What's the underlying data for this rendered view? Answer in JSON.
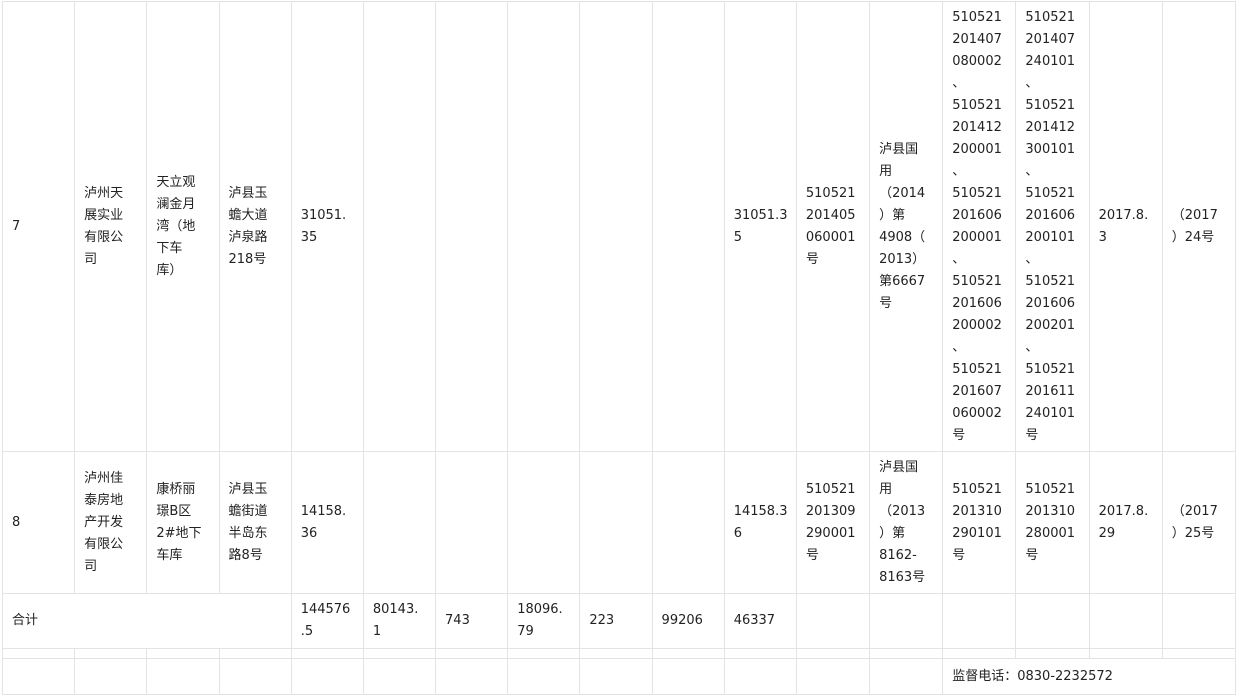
{
  "rows": [
    {
      "index": "7",
      "company": "泸州天\n展实业\n有限公\n司",
      "project": "天立观\n澜金月\n湾（地\n下车\n库）",
      "location": "泸县玉\n蟾大道\n泸泉路\n218号",
      "area1": "31051.\n35",
      "area_total": "31051.3\n5",
      "cert1": "510521\n201405\n060001\n号",
      "land_cert": "泸县国\n用\n（2014\n）第\n4908（\n2013）\n第6667\n号",
      "permit_a": "510521\n201407\n080002\n、\n510521\n201412\n200001\n、\n510521\n201606\n200001\n、\n510521\n201606\n200002\n、\n510521\n201607\n060002\n号",
      "permit_b": "510521\n201407\n240101\n、\n510521\n201412\n300101\n、\n510521\n201606\n200101\n、\n510521\n201606\n200201\n、\n510521\n201611\n240101\n号",
      "date": "2017.8.\n3",
      "doc_no": "（2017\n）24号"
    },
    {
      "index": "8",
      "company": "泸州佳\n泰房地\n产开发\n有限公\n司",
      "project": "康桥丽\n璟B区\n2#地下\n车库",
      "location": "泸县玉\n蟾街道\n半岛东\n路8号",
      "area1": "14158.\n36",
      "area_total": "14158.3\n6",
      "cert1": "510521\n201309\n290001\n号",
      "land_cert": "泸县国\n用\n（2013\n）第\n8162-\n8163号",
      "permit_a": "510521\n201310\n290101\n号",
      "permit_b": "510521\n201310\n280001\n号",
      "date": "2017.8.\n29",
      "doc_no": "（2017\n）25号"
    }
  ],
  "total": {
    "label": "合计",
    "c1": "144576\n.5",
    "c2": "80143.\n1",
    "c3": "743",
    "c4": "18096.\n79",
    "c5": "223",
    "c6": "99206",
    "c7": "46337"
  },
  "footer": {
    "supervision": "监督电话：0830-2232572"
  }
}
